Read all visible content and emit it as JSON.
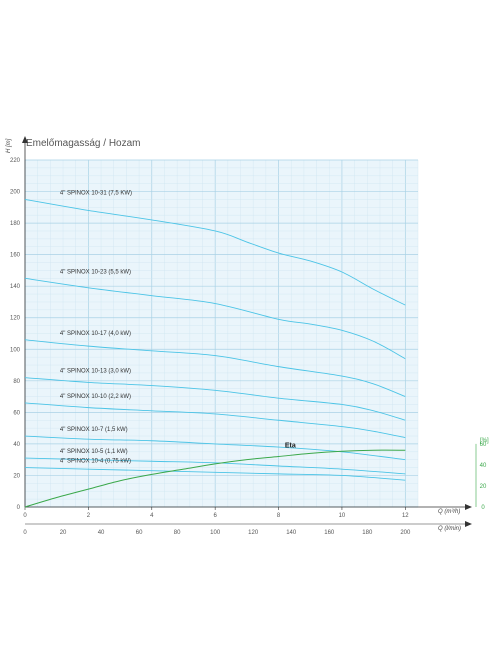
{
  "chart_data": {
    "type": "line",
    "title": "Emelőmagasság / Hozam",
    "y_label": "H [m]",
    "y_range": [
      0,
      220
    ],
    "y_ticks": [
      0,
      20,
      40,
      60,
      80,
      100,
      120,
      140,
      160,
      180,
      200,
      220
    ],
    "x_label_top": "Q (m³/h)",
    "x_top_range": [
      0,
      12.4
    ],
    "x_top_ticks": [
      0,
      2,
      4,
      6,
      8,
      10,
      12
    ],
    "x_label_bottom": "Q (l/min)",
    "x_bottom_ticks": [
      0,
      20,
      40,
      60,
      80,
      100,
      120,
      140,
      160,
      180,
      200
    ],
    "eta_axis_label": "[%]",
    "eta_range": [
      0,
      60
    ],
    "eta_ticks": [
      0,
      20,
      40,
      60
    ],
    "grid": true,
    "series": [
      {
        "name": "4\" SPINOX 10-31 (7,5 KW)",
        "color": "#4cc4e6",
        "points": [
          [
            0,
            195
          ],
          [
            2,
            188
          ],
          [
            4,
            182
          ],
          [
            6,
            175
          ],
          [
            7,
            168
          ],
          [
            8,
            161
          ],
          [
            9,
            156
          ],
          [
            10,
            149
          ],
          [
            11,
            138
          ],
          [
            12,
            128
          ]
        ]
      },
      {
        "name": "4\" SPINOX 10-23 (5,5 kW)",
        "color": "#4cc4e6",
        "points": [
          [
            0,
            145
          ],
          [
            2,
            139
          ],
          [
            4,
            134
          ],
          [
            6,
            129
          ],
          [
            8,
            119
          ],
          [
            9,
            116
          ],
          [
            10,
            112
          ],
          [
            11,
            105
          ],
          [
            12,
            94
          ]
        ]
      },
      {
        "name": "4\" SPINOX 10-17 (4,0 kW)",
        "color": "#4cc4e6",
        "points": [
          [
            0,
            106
          ],
          [
            2,
            102
          ],
          [
            4,
            99
          ],
          [
            6,
            96
          ],
          [
            8,
            89
          ],
          [
            10,
            83
          ],
          [
            11,
            78
          ],
          [
            12,
            70
          ]
        ]
      },
      {
        "name": "4\" SPINOX 10-13 (3,0 kW)",
        "color": "#4cc4e6",
        "points": [
          [
            0,
            82
          ],
          [
            2,
            79
          ],
          [
            4,
            77
          ],
          [
            6,
            74
          ],
          [
            8,
            69
          ],
          [
            10,
            65
          ],
          [
            11,
            61
          ],
          [
            12,
            55
          ]
        ]
      },
      {
        "name": "4\" SPINOX 10-10 (2,2 kW)",
        "color": "#4cc4e6",
        "points": [
          [
            0,
            66
          ],
          [
            2,
            63
          ],
          [
            4,
            61
          ],
          [
            6,
            59
          ],
          [
            8,
            55
          ],
          [
            10,
            51
          ],
          [
            11,
            48
          ],
          [
            12,
            44
          ]
        ]
      },
      {
        "name": "4\" SPINOX 10-7 (1,5 kW)",
        "color": "#4cc4e6",
        "points": [
          [
            0,
            45
          ],
          [
            2,
            43
          ],
          [
            4,
            42
          ],
          [
            6,
            40
          ],
          [
            8,
            38
          ],
          [
            10,
            35
          ],
          [
            12,
            30
          ]
        ]
      },
      {
        "name": "4\" SPINOX 10-5 (1,1 kW)",
        "color": "#4cc4e6",
        "points": [
          [
            0,
            31
          ],
          [
            2,
            30
          ],
          [
            4,
            29
          ],
          [
            6,
            28
          ],
          [
            8,
            26
          ],
          [
            10,
            24
          ],
          [
            12,
            21
          ]
        ]
      },
      {
        "name": "4\" SPINOX 10-4 (0,75 kW)",
        "color": "#4cc4e6",
        "points": [
          [
            0,
            25
          ],
          [
            2,
            24
          ],
          [
            4,
            23
          ],
          [
            6,
            22
          ],
          [
            8,
            21
          ],
          [
            10,
            20
          ],
          [
            12,
            17
          ]
        ]
      }
    ],
    "eta": {
      "name": "Eta",
      "color": "#3aa84a",
      "points": [
        [
          0,
          0
        ],
        [
          1,
          9
        ],
        [
          2,
          17
        ],
        [
          3,
          25
        ],
        [
          4,
          31
        ],
        [
          5,
          36
        ],
        [
          6,
          41
        ],
        [
          7,
          45
        ],
        [
          8,
          48
        ],
        [
          9,
          51
        ],
        [
          10,
          53
        ],
        [
          11,
          54
        ],
        [
          12,
          54
        ]
      ]
    }
  }
}
